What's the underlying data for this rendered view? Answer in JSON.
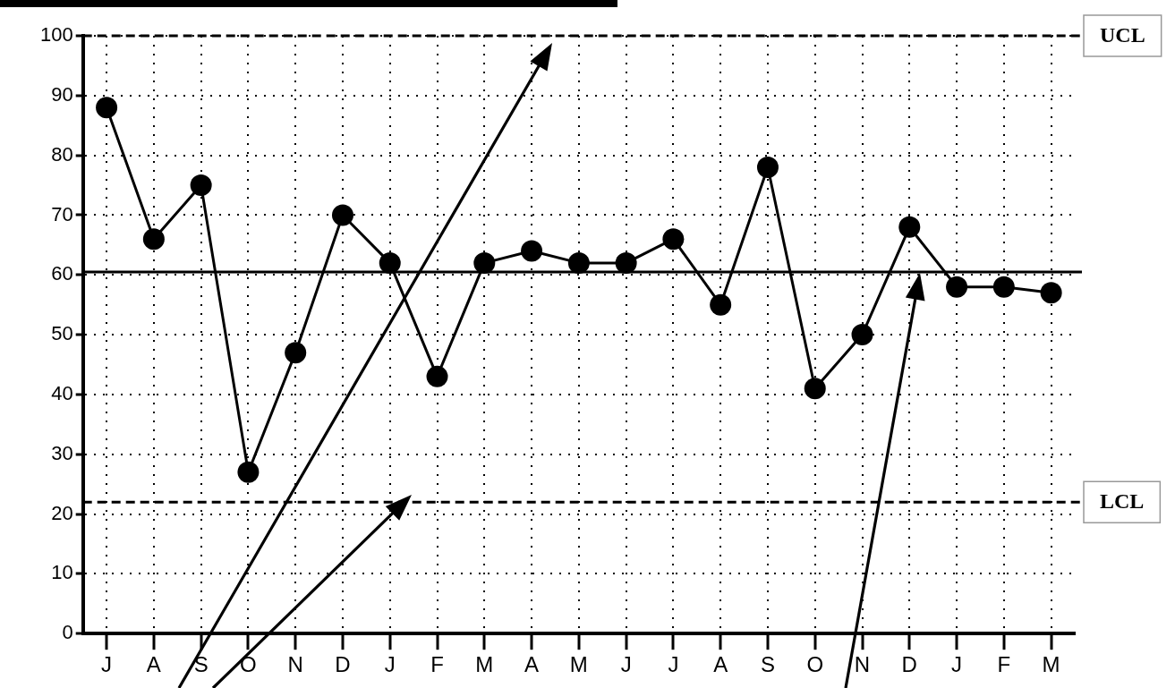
{
  "chart_data": {
    "type": "line",
    "categories": [
      "J",
      "A",
      "S",
      "O",
      "N",
      "D",
      "J",
      "F",
      "M",
      "A",
      "M",
      "J",
      "J",
      "A",
      "S",
      "O",
      "N",
      "D",
      "J",
      "F",
      "M"
    ],
    "series": [
      {
        "color": "#000000",
        "values": [
          88,
          66,
          75,
          27,
          47,
          70,
          62,
          43,
          62,
          64,
          62,
          62,
          66,
          55,
          78,
          41,
          50,
          68,
          58,
          58,
          57
        ]
      }
    ],
    "ylim": [
      0,
      100
    ],
    "yticks": [
      0,
      10,
      20,
      30,
      40,
      50,
      60,
      70,
      80,
      90,
      100
    ],
    "grid": true,
    "legend": false,
    "marker": "circle",
    "line_style": "solid",
    "ref_lines": [
      {
        "axis": "y",
        "value": 100,
        "label": "UCL",
        "color": "#000000",
        "line_style": "dashed"
      },
      {
        "axis": "y",
        "value": 60.5,
        "label": null,
        "color": "#000000",
        "line_style": "solid"
      },
      {
        "axis": "y",
        "value": 22,
        "label": "LCL",
        "color": "#000000",
        "line_style": "dashed"
      }
    ]
  }
}
